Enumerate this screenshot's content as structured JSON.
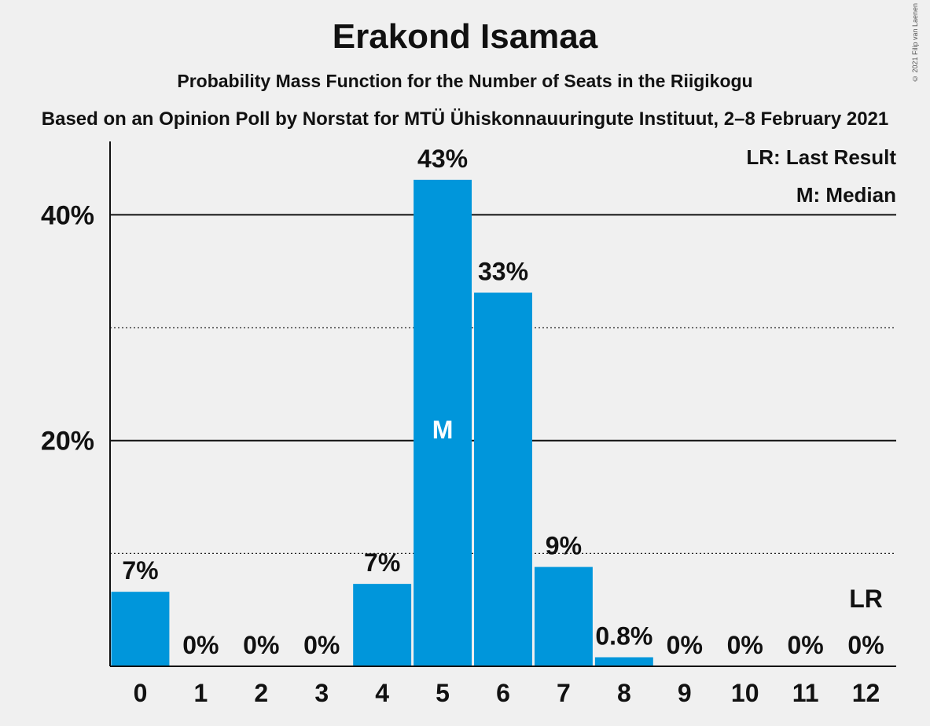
{
  "chart_data": {
    "type": "bar",
    "title": "Erakond Isamaa",
    "subtitle": "Probability Mass Function for the Number of Seats in the Riigikogu",
    "subsubtitle": "Based on an Opinion Poll by Norstat for MTÜ Ühiskonnauuringute Instituut, 2–8 February 2021",
    "copyright": "© 2021 Filip van Laenen",
    "categories": [
      "0",
      "1",
      "2",
      "3",
      "4",
      "5",
      "6",
      "7",
      "8",
      "9",
      "10",
      "11",
      "12"
    ],
    "values": [
      6.6,
      0,
      0,
      0,
      7.3,
      43.1,
      33.1,
      8.8,
      0.8,
      0,
      0,
      0,
      0
    ],
    "value_labels": [
      "7%",
      "0%",
      "0%",
      "0%",
      "7%",
      "43%",
      "33%",
      "9%",
      "0.8%",
      "0%",
      "0%",
      "0%",
      "0%"
    ],
    "ylim": [
      0,
      46.5
    ],
    "yticks": [
      {
        "value": 20,
        "label": "20%"
      },
      {
        "value": 40,
        "label": "40%"
      }
    ],
    "minor_gridlines": [
      10,
      30
    ],
    "median_index": 5,
    "median_marker": "M",
    "last_result_index": 12,
    "last_result_marker": "LR",
    "legend": [
      "LR: Last Result",
      "M: Median"
    ],
    "legend_position": "top-right",
    "bar_color": "#0096db",
    "background": "#f0f0f0"
  }
}
